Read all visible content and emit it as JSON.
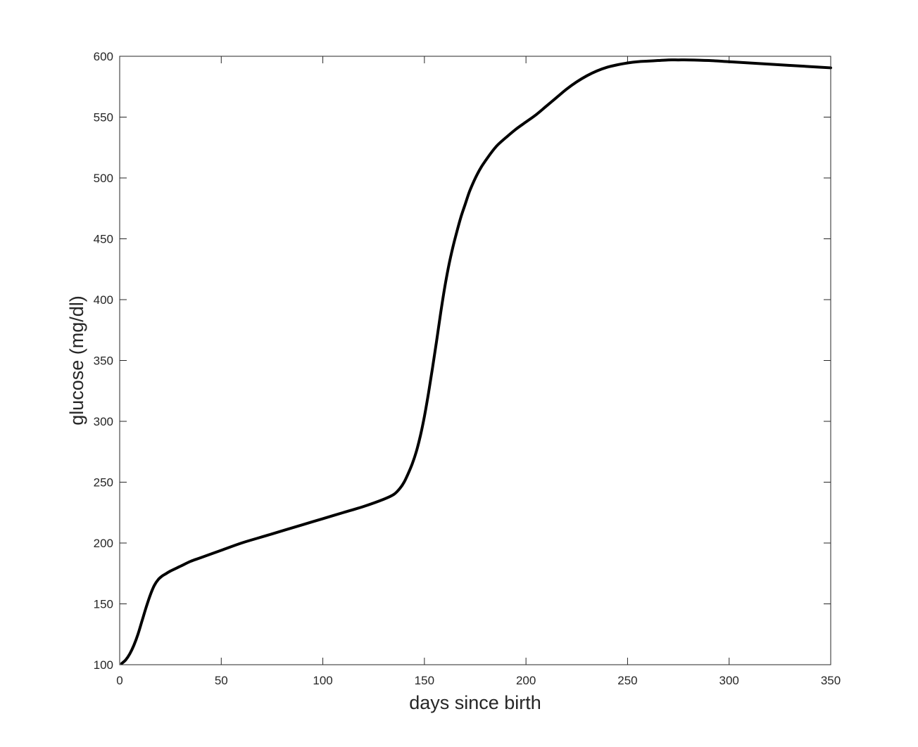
{
  "chart_data": {
    "type": "line",
    "title": "",
    "xlabel": "days since birth",
    "ylabel": "glucose (mg/dl)",
    "xlim": [
      0,
      350
    ],
    "ylim": [
      100,
      600
    ],
    "xticks": [
      0,
      50,
      100,
      150,
      200,
      250,
      300,
      350
    ],
    "yticks": [
      100,
      150,
      200,
      250,
      300,
      350,
      400,
      450,
      500,
      550,
      600
    ],
    "grid": false,
    "line_color": "#000000",
    "series": [
      {
        "x": [
          1,
          3,
          5,
          7,
          9,
          11,
          13,
          15,
          17,
          19,
          21,
          23,
          25,
          30,
          35,
          40,
          50,
          60,
          70,
          80,
          90,
          100,
          110,
          120,
          130,
          135,
          138,
          140,
          142,
          144,
          146,
          148,
          150,
          152,
          154,
          156,
          158,
          160,
          162,
          164,
          166,
          168,
          170,
          172,
          174,
          176,
          178,
          180,
          183,
          186,
          190,
          195,
          200,
          205,
          210,
          215,
          220,
          225,
          230,
          235,
          240,
          245,
          250,
          255,
          260,
          265,
          270,
          275,
          280,
          290,
          300,
          310,
          320,
          330,
          340,
          350
        ],
        "y": [
          101,
          104,
          109,
          116,
          125,
          136,
          147,
          157,
          165,
          170,
          173,
          175,
          177,
          181,
          185,
          188,
          194,
          200,
          205,
          210,
          215,
          220,
          225,
          230,
          236,
          240,
          245,
          250,
          257,
          265,
          275,
          288,
          304,
          323,
          344,
          366,
          389,
          410,
          428,
          443,
          456,
          468,
          478,
          488,
          496,
          503,
          509,
          514,
          521,
          527,
          533,
          540,
          546,
          552,
          559,
          566,
          573,
          579,
          584,
          588,
          591,
          593,
          594.5,
          595.5,
          596,
          596.5,
          597,
          597,
          597,
          596.5,
          595.5,
          594.5,
          593.5,
          592.5,
          591.5,
          590.5
        ]
      }
    ]
  }
}
